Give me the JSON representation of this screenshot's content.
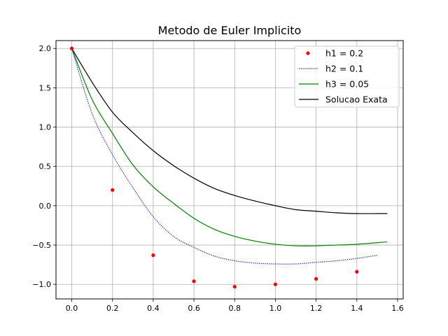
{
  "chart_data": {
    "type": "line",
    "title": "Metodo de Euler Implicito",
    "xlabel": "",
    "ylabel": "",
    "xlim": [
      -0.0775,
      1.6275
    ],
    "ylim": [
      -1.185,
      2.1
    ],
    "xticks": [
      0.0,
      0.2,
      0.4,
      0.6,
      0.8,
      1.0,
      1.2,
      1.4,
      1.6
    ],
    "xtick_labels": [
      "0.0",
      "0.2",
      "0.4",
      "0.6",
      "0.8",
      "1.0",
      "1.2",
      "1.4",
      "1.6"
    ],
    "yticks": [
      -1.0,
      -0.5,
      0.0,
      0.5,
      1.0,
      1.5,
      2.0
    ],
    "ytick_labels": [
      "−1.0",
      "−0.5",
      "0.0",
      "0.5",
      "1.0",
      "1.5",
      "2.0"
    ],
    "grid": true,
    "legend_position": "top-right",
    "series": [
      {
        "name": "h1 = 0.2",
        "style": "points",
        "color": "#ff0000",
        "x": [
          0.0,
          0.2,
          0.4,
          0.6,
          0.8,
          1.0,
          1.2,
          1.4
        ],
        "y": [
          2.0,
          0.2,
          -0.63,
          -0.96,
          -1.03,
          -1.0,
          -0.93,
          -0.84
        ]
      },
      {
        "name": "h2 = 0.1",
        "style": "dotted",
        "color": "#0000ff",
        "x": [
          0.0,
          0.1,
          0.2,
          0.3,
          0.4,
          0.5,
          0.6,
          0.7,
          0.8,
          0.9,
          1.0,
          1.1,
          1.2,
          1.3,
          1.4,
          1.5
        ],
        "y": [
          2.0,
          1.17,
          0.65,
          0.23,
          -0.14,
          -0.39,
          -0.53,
          -0.64,
          -0.7,
          -0.73,
          -0.74,
          -0.74,
          -0.72,
          -0.7,
          -0.67,
          -0.63
        ]
      },
      {
        "name": "h3 = 0.05",
        "style": "solid",
        "color": "#008000",
        "x": [
          0.0,
          0.1,
          0.2,
          0.3,
          0.4,
          0.5,
          0.6,
          0.7,
          0.8,
          0.9,
          1.0,
          1.1,
          1.2,
          1.3,
          1.4,
          1.55
        ],
        "y": [
          2.0,
          1.35,
          0.92,
          0.52,
          0.24,
          0.03,
          -0.16,
          -0.3,
          -0.39,
          -0.45,
          -0.49,
          -0.51,
          -0.51,
          -0.5,
          -0.49,
          -0.46
        ]
      },
      {
        "name": "Solucao Exata",
        "style": "solid",
        "color": "#000000",
        "x": [
          0.0,
          0.1,
          0.2,
          0.3,
          0.4,
          0.5,
          0.6,
          0.7,
          0.8,
          0.9,
          1.0,
          1.1,
          1.2,
          1.3,
          1.4,
          1.55
        ],
        "y": [
          2.0,
          1.57,
          1.19,
          0.93,
          0.7,
          0.51,
          0.35,
          0.22,
          0.13,
          0.06,
          0.0,
          -0.05,
          -0.07,
          -0.09,
          -0.1,
          -0.1
        ]
      }
    ]
  }
}
